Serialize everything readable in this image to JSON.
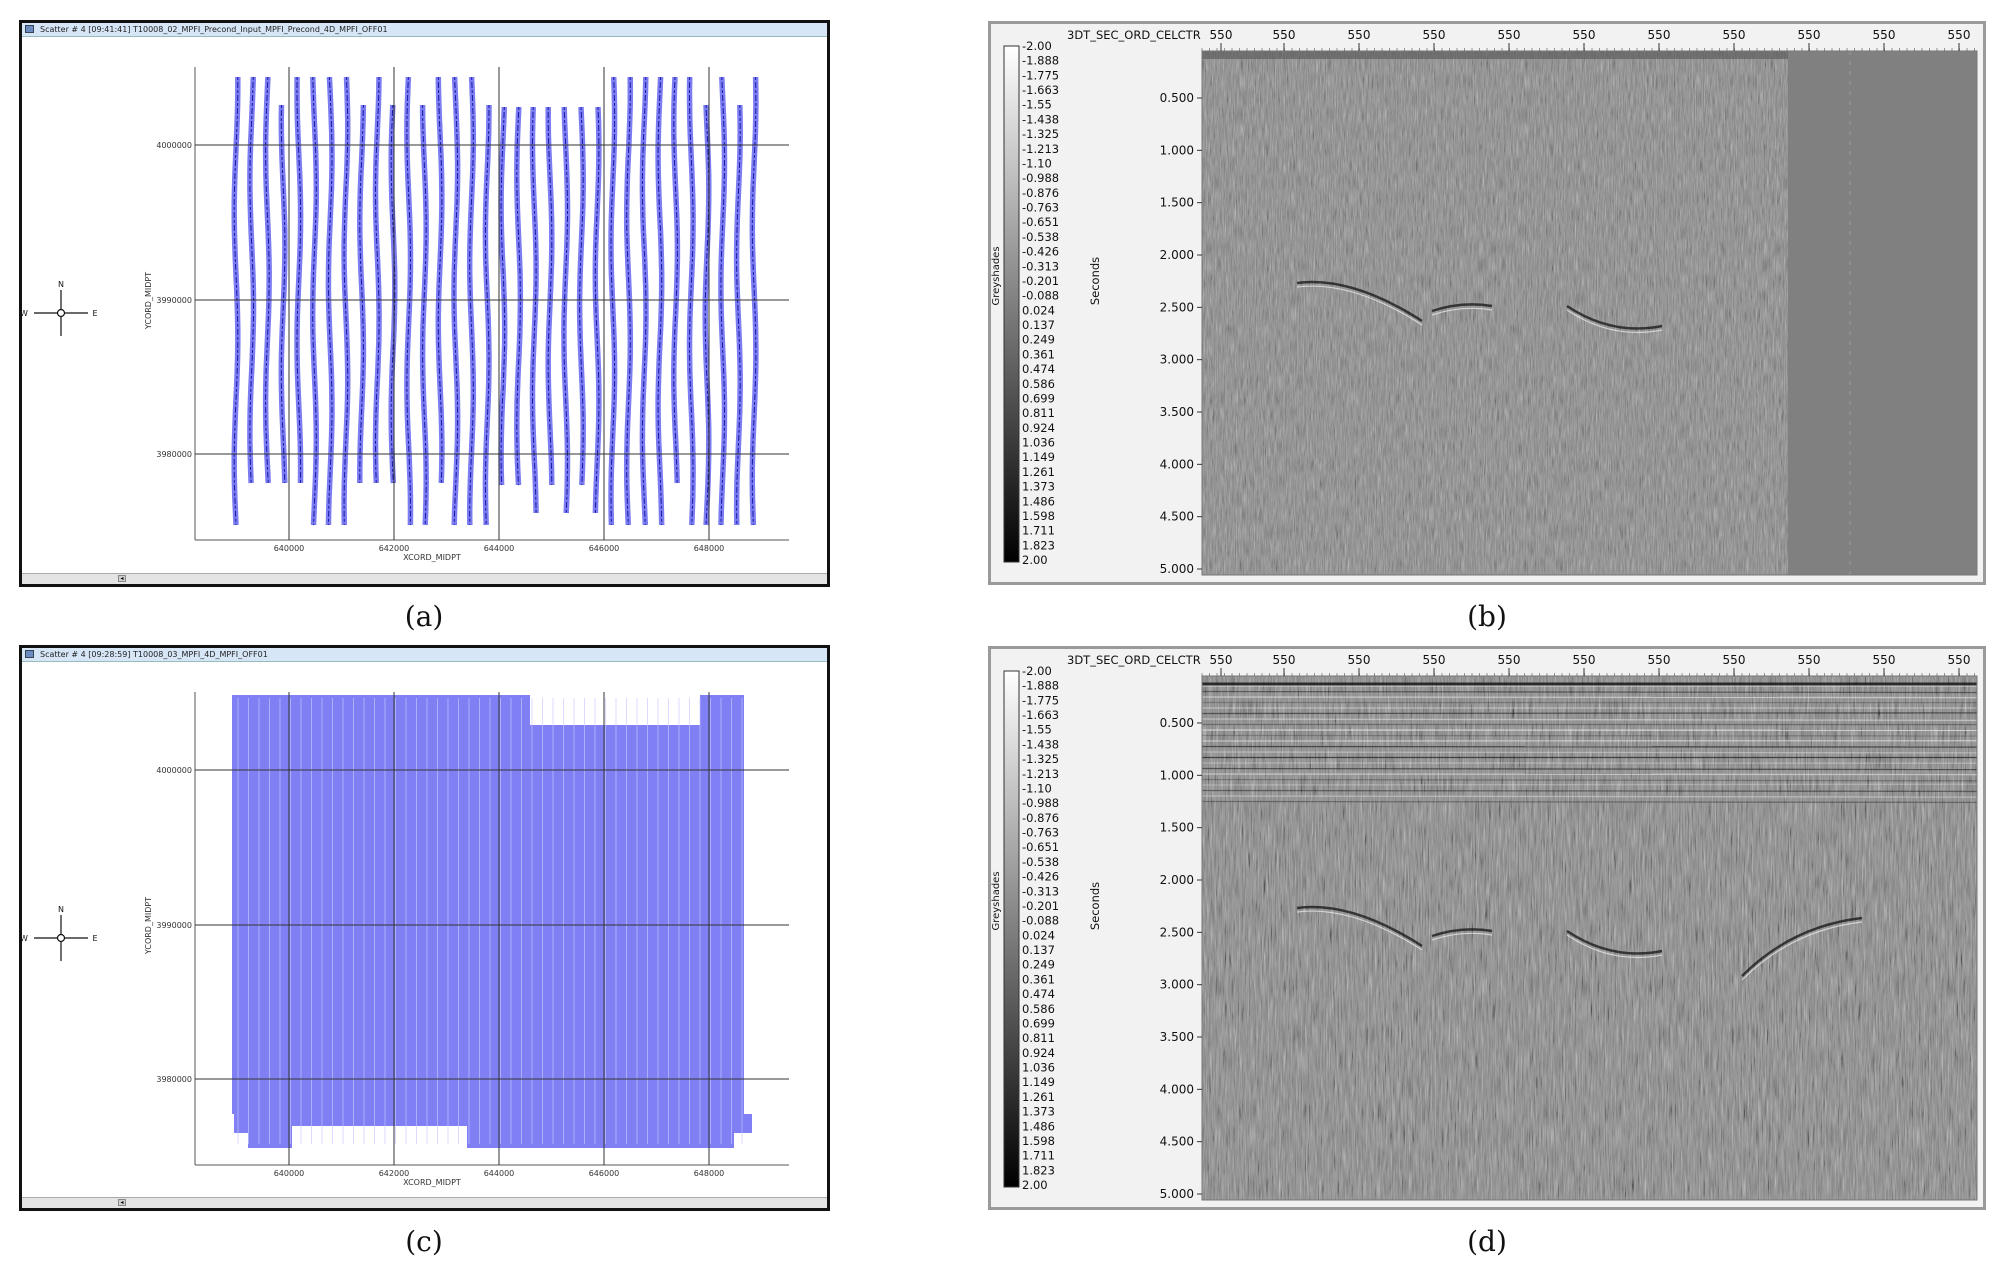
{
  "panels": {
    "a": {
      "caption": "(a)",
      "window_title": "Scatter # 4 [09:41:41]  T10008_02_MPFI_Precond_Input_MPFI_Precond_4D_MPFI_OFF01",
      "xlabel": "XCORD_MIDPT",
      "ylabel": "YCORD_MIDPT",
      "x_ticks": [
        "640000",
        "642000",
        "644000",
        "646000",
        "648000"
      ],
      "y_ticks": [
        "4000000",
        "3990000",
        "3980000"
      ],
      "compass": {
        "n": "N",
        "e": "E",
        "w": "W"
      }
    },
    "b": {
      "caption": "(b)",
      "header_label": "3DT_SEC_ORD_CELCTR",
      "header_ticks": [
        "550",
        "550",
        "550",
        "550",
        "550",
        "550",
        "550",
        "550",
        "550",
        "550",
        "550"
      ],
      "colorbar_label": "Greyshades",
      "yaxis_label": "Seconds",
      "time_ticks": [
        "0.500",
        "1.000",
        "1.500",
        "2.000",
        "2.500",
        "3.000",
        "3.500",
        "4.000",
        "4.500",
        "5.000"
      ]
    },
    "c": {
      "caption": "(c)",
      "window_title": "Scatter # 4 [09:28:59]  T10008_03_MPFI_4D_MPFI_OFF01",
      "xlabel": "XCORD_MIDPT",
      "ylabel": "YCORD_MIDPT",
      "x_ticks": [
        "640000",
        "642000",
        "644000",
        "646000",
        "648000"
      ],
      "y_ticks": [
        "4000000",
        "3990000",
        "3980000"
      ],
      "compass": {
        "n": "N",
        "e": "E",
        "w": "W"
      }
    },
    "d": {
      "caption": "(d)",
      "header_label": "3DT_SEC_ORD_CELCTR",
      "header_ticks": [
        "550",
        "550",
        "550",
        "550",
        "550",
        "550",
        "550",
        "550",
        "550",
        "550",
        "550"
      ],
      "colorbar_label": "Greyshades",
      "yaxis_label": "Seconds",
      "time_ticks": [
        "0.500",
        "1.000",
        "1.500",
        "2.000",
        "2.500",
        "3.000",
        "3.500",
        "4.000",
        "4.500",
        "5.000"
      ]
    }
  },
  "colorbar_values": [
    "-2.00",
    "-1.888",
    "-1.775",
    "-1.663",
    "-1.55",
    "-1.438",
    "-1.325",
    "-1.213",
    "-1.10",
    "-0.988",
    "-0.876",
    "-0.763",
    "-0.651",
    "-0.538",
    "-0.426",
    "-0.313",
    "-0.201",
    "-0.088",
    "0.024",
    "0.137",
    "0.249",
    "0.361",
    "0.474",
    "0.586",
    "0.699",
    "0.811",
    "0.924",
    "1.036",
    "1.149",
    "1.261",
    "1.373",
    "1.486",
    "1.598",
    "1.711",
    "1.823",
    "2.00"
  ],
  "colors": {
    "scatter_line": "#7b7df0",
    "scatter_line_dark": "#1a1aa8",
    "scatter_fill": "#8080f4",
    "seismic_bg": "#808080",
    "window_frame": "#111111",
    "seismic_frame": "#9a9a9a"
  }
}
